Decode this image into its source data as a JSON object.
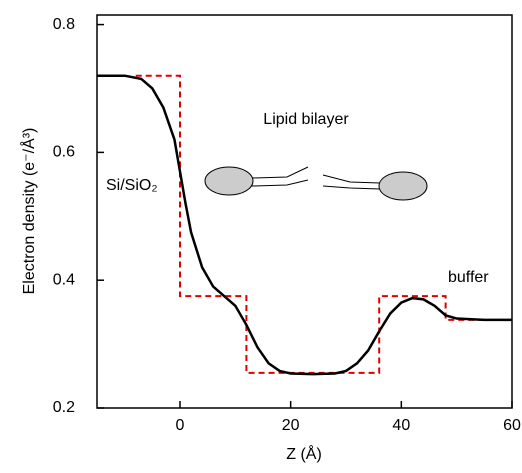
{
  "chart_data": {
    "type": "line",
    "x_label": "Z (Å)",
    "y_label": "Electron density (e⁻/Å³)",
    "annotations": [
      "Lipid bilayer",
      "Si/SiO₂",
      "buffer"
    ],
    "xlim": [
      -15,
      60
    ],
    "xticks": [
      0,
      20,
      40,
      60
    ],
    "ylim": [
      0.2,
      0.815
    ],
    "yticks": [
      0.2,
      0.4,
      0.6,
      0.8
    ],
    "series": [
      {
        "color": "#e00000",
        "dashed": true,
        "x": [
          -8,
          0,
          0,
          12,
          12,
          36,
          36,
          48,
          48,
          60
        ],
        "values": [
          0.72,
          0.72,
          0.375,
          0.375,
          0.255,
          0.255,
          0.375,
          0.375,
          0.338,
          0.338
        ]
      },
      {
        "color": "#000000",
        "dashed": false,
        "x": [
          -15,
          -10,
          -7,
          -5,
          -3,
          -1,
          0,
          1,
          2,
          4,
          6,
          8,
          10,
          12,
          14,
          16,
          18,
          20,
          24,
          28,
          30,
          32,
          34,
          36,
          38,
          40,
          42,
          44,
          46,
          48,
          50,
          55,
          60
        ],
        "values": [
          0.72,
          0.72,
          0.715,
          0.7,
          0.67,
          0.62,
          0.57,
          0.52,
          0.475,
          0.42,
          0.39,
          0.375,
          0.36,
          0.33,
          0.295,
          0.27,
          0.258,
          0.254,
          0.253,
          0.254,
          0.258,
          0.27,
          0.29,
          0.32,
          0.348,
          0.365,
          0.372,
          0.37,
          0.36,
          0.345,
          0.34,
          0.338,
          0.338
        ]
      }
    ]
  }
}
